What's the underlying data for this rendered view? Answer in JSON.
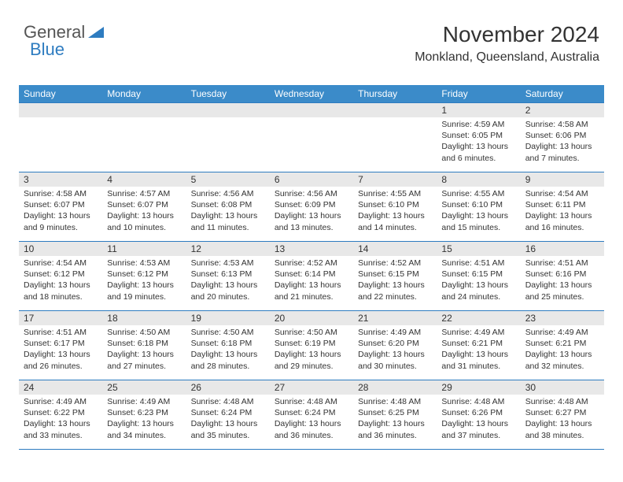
{
  "logo": {
    "part1": "General",
    "part2": "Blue"
  },
  "header": {
    "month_title": "November 2024",
    "location": "Monkland, Queensland, Australia"
  },
  "calendar": {
    "header_bg": "#3b8bc9",
    "header_fg": "#ffffff",
    "border_color": "#2e7cc0",
    "daynum_bg": "#e8e8e8",
    "background": "#ffffff",
    "text_color": "#333333",
    "font_size_header": 12,
    "font_size_daynum": 12,
    "font_size_cell": 10.5,
    "columns": [
      "Sunday",
      "Monday",
      "Tuesday",
      "Wednesday",
      "Thursday",
      "Friday",
      "Saturday"
    ],
    "weeks": [
      [
        null,
        null,
        null,
        null,
        null,
        {
          "d": "1",
          "sr": "4:59 AM",
          "ss": "6:05 PM",
          "dh": 13,
          "dm": 6
        },
        {
          "d": "2",
          "sr": "4:58 AM",
          "ss": "6:06 PM",
          "dh": 13,
          "dm": 7
        }
      ],
      [
        {
          "d": "3",
          "sr": "4:58 AM",
          "ss": "6:07 PM",
          "dh": 13,
          "dm": 9
        },
        {
          "d": "4",
          "sr": "4:57 AM",
          "ss": "6:07 PM",
          "dh": 13,
          "dm": 10
        },
        {
          "d": "5",
          "sr": "4:56 AM",
          "ss": "6:08 PM",
          "dh": 13,
          "dm": 11
        },
        {
          "d": "6",
          "sr": "4:56 AM",
          "ss": "6:09 PM",
          "dh": 13,
          "dm": 13
        },
        {
          "d": "7",
          "sr": "4:55 AM",
          "ss": "6:10 PM",
          "dh": 13,
          "dm": 14
        },
        {
          "d": "8",
          "sr": "4:55 AM",
          "ss": "6:10 PM",
          "dh": 13,
          "dm": 15
        },
        {
          "d": "9",
          "sr": "4:54 AM",
          "ss": "6:11 PM",
          "dh": 13,
          "dm": 16
        }
      ],
      [
        {
          "d": "10",
          "sr": "4:54 AM",
          "ss": "6:12 PM",
          "dh": 13,
          "dm": 18
        },
        {
          "d": "11",
          "sr": "4:53 AM",
          "ss": "6:12 PM",
          "dh": 13,
          "dm": 19
        },
        {
          "d": "12",
          "sr": "4:53 AM",
          "ss": "6:13 PM",
          "dh": 13,
          "dm": 20
        },
        {
          "d": "13",
          "sr": "4:52 AM",
          "ss": "6:14 PM",
          "dh": 13,
          "dm": 21
        },
        {
          "d": "14",
          "sr": "4:52 AM",
          "ss": "6:15 PM",
          "dh": 13,
          "dm": 22
        },
        {
          "d": "15",
          "sr": "4:51 AM",
          "ss": "6:15 PM",
          "dh": 13,
          "dm": 24
        },
        {
          "d": "16",
          "sr": "4:51 AM",
          "ss": "6:16 PM",
          "dh": 13,
          "dm": 25
        }
      ],
      [
        {
          "d": "17",
          "sr": "4:51 AM",
          "ss": "6:17 PM",
          "dh": 13,
          "dm": 26
        },
        {
          "d": "18",
          "sr": "4:50 AM",
          "ss": "6:18 PM",
          "dh": 13,
          "dm": 27
        },
        {
          "d": "19",
          "sr": "4:50 AM",
          "ss": "6:18 PM",
          "dh": 13,
          "dm": 28
        },
        {
          "d": "20",
          "sr": "4:50 AM",
          "ss": "6:19 PM",
          "dh": 13,
          "dm": 29
        },
        {
          "d": "21",
          "sr": "4:49 AM",
          "ss": "6:20 PM",
          "dh": 13,
          "dm": 30
        },
        {
          "d": "22",
          "sr": "4:49 AM",
          "ss": "6:21 PM",
          "dh": 13,
          "dm": 31
        },
        {
          "d": "23",
          "sr": "4:49 AM",
          "ss": "6:21 PM",
          "dh": 13,
          "dm": 32
        }
      ],
      [
        {
          "d": "24",
          "sr": "4:49 AM",
          "ss": "6:22 PM",
          "dh": 13,
          "dm": 33
        },
        {
          "d": "25",
          "sr": "4:49 AM",
          "ss": "6:23 PM",
          "dh": 13,
          "dm": 34
        },
        {
          "d": "26",
          "sr": "4:48 AM",
          "ss": "6:24 PM",
          "dh": 13,
          "dm": 35
        },
        {
          "d": "27",
          "sr": "4:48 AM",
          "ss": "6:24 PM",
          "dh": 13,
          "dm": 36
        },
        {
          "d": "28",
          "sr": "4:48 AM",
          "ss": "6:25 PM",
          "dh": 13,
          "dm": 36
        },
        {
          "d": "29",
          "sr": "4:48 AM",
          "ss": "6:26 PM",
          "dh": 13,
          "dm": 37
        },
        {
          "d": "30",
          "sr": "4:48 AM",
          "ss": "6:27 PM",
          "dh": 13,
          "dm": 38
        }
      ]
    ],
    "labels": {
      "sunrise": "Sunrise:",
      "sunset": "Sunset:",
      "daylight_pre": "Daylight:",
      "hours_word": "hours",
      "and_word": "and",
      "minutes_word": "minutes."
    }
  }
}
